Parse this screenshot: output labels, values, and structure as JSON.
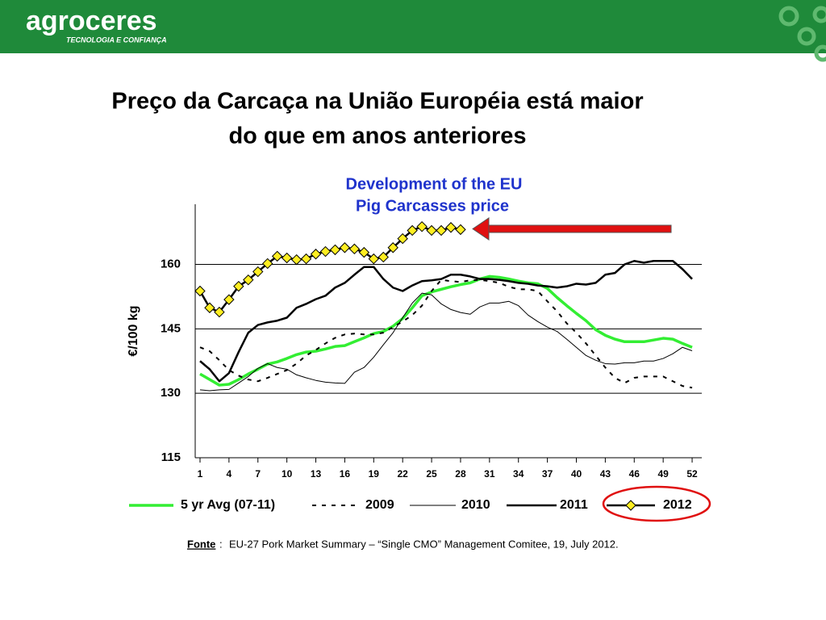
{
  "header": {
    "logo": "agroceres",
    "tagline": "TECNOLOGIA E CONFIANÇA"
  },
  "slide_title": [
    "Preço da Carcaça na União Européia está maior",
    "do que em anos anteriores"
  ],
  "chart_data": {
    "type": "line",
    "title": [
      "Development of the EU",
      "Pig Carcasses price"
    ],
    "y_label": "€/100 kg",
    "x": [
      1,
      2,
      3,
      4,
      5,
      6,
      7,
      8,
      9,
      10,
      11,
      12,
      13,
      14,
      15,
      16,
      17,
      18,
      19,
      20,
      21,
      22,
      23,
      24,
      25,
      26,
      27,
      28,
      29,
      30,
      31,
      32,
      33,
      34,
      35,
      36,
      37,
      38,
      39,
      40,
      41,
      42,
      43,
      44,
      45,
      46,
      47,
      48,
      49,
      50,
      51,
      52
    ],
    "xlim": [
      0.5,
      53
    ],
    "xticks": [
      1,
      4,
      7,
      10,
      13,
      16,
      19,
      22,
      25,
      28,
      31,
      34,
      37,
      40,
      43,
      46,
      49,
      52
    ],
    "ylim": [
      115,
      174
    ],
    "yticks": [
      115,
      130,
      145,
      160
    ],
    "grid": true,
    "series": [
      {
        "name": "5 yr Avg (07-11)",
        "color": "#33ee33",
        "width": 3.5,
        "dash": false,
        "values": [
          134.5,
          133.2,
          131.9,
          132.1,
          133.2,
          134.5,
          135.6,
          136.8,
          137.3,
          138.1,
          139.0,
          139.6,
          139.8,
          140.3,
          140.9,
          141.1,
          142.0,
          142.9,
          143.9,
          144.4,
          145.6,
          147.4,
          149.9,
          152.7,
          153.6,
          154.2,
          154.8,
          155.3,
          155.7,
          156.6,
          157.2,
          157.0,
          156.6,
          156.1,
          155.7,
          155.5,
          154.4,
          152.3,
          150.4,
          148.6,
          146.9,
          144.8,
          143.5,
          142.6,
          142.0,
          142.0,
          142.0,
          142.4,
          142.8,
          142.6,
          141.6,
          140.7
        ]
      },
      {
        "name": "2009",
        "color": "#000000",
        "width": 2,
        "dash": true,
        "values": [
          140.7,
          139.8,
          137.7,
          135.4,
          134.1,
          133.2,
          132.8,
          133.6,
          134.5,
          135.4,
          136.9,
          138.8,
          140.1,
          141.6,
          142.9,
          143.7,
          143.9,
          143.7,
          143.7,
          144.1,
          145.4,
          146.7,
          148.2,
          150.4,
          153.8,
          156.4,
          156.1,
          155.9,
          156.3,
          156.4,
          156.1,
          155.7,
          154.8,
          154.2,
          154.2,
          153.8,
          151.4,
          149.1,
          146.3,
          144.1,
          141.6,
          138.8,
          136.0,
          133.6,
          132.4,
          133.6,
          133.9,
          133.9,
          133.9,
          132.8,
          131.7,
          131.3
        ]
      },
      {
        "name": "2010",
        "color": "#000000",
        "width": 1,
        "dash": false,
        "values": [
          130.8,
          130.6,
          130.8,
          130.9,
          132.4,
          133.9,
          135.8,
          136.9,
          136.0,
          135.6,
          134.3,
          133.6,
          133.0,
          132.6,
          132.4,
          132.3,
          134.9,
          136.0,
          138.4,
          141.3,
          144.1,
          147.6,
          151.0,
          153.3,
          152.9,
          150.8,
          149.5,
          148.8,
          148.4,
          150.1,
          151.0,
          151.0,
          151.4,
          150.4,
          148.2,
          146.7,
          145.4,
          144.4,
          142.6,
          140.7,
          138.8,
          137.7,
          136.9,
          136.8,
          137.1,
          137.1,
          137.5,
          137.5,
          138.1,
          139.2,
          140.7,
          139.9
        ]
      },
      {
        "name": "2011",
        "color": "#000000",
        "width": 2.5,
        "dash": false,
        "values": [
          137.5,
          135.6,
          132.8,
          134.7,
          139.6,
          144.1,
          145.9,
          146.5,
          146.9,
          147.6,
          149.9,
          150.8,
          151.9,
          152.7,
          154.6,
          155.7,
          157.6,
          159.4,
          159.4,
          156.6,
          154.6,
          153.8,
          155.1,
          156.1,
          156.3,
          156.6,
          157.6,
          157.6,
          157.2,
          156.6,
          156.6,
          156.4,
          156.1,
          155.7,
          155.5,
          155.1,
          154.9,
          154.6,
          154.9,
          155.5,
          155.3,
          155.7,
          157.6,
          158.0,
          160.0,
          160.8,
          160.4,
          160.8,
          160.8,
          160.8,
          158.9,
          156.6
        ]
      },
      {
        "name": "2012",
        "color": "#000000",
        "marker_color": "#ffee22",
        "marker": "diamond",
        "width": 2.5,
        "dash": false,
        "values": [
          153.8,
          149.9,
          148.9,
          151.8,
          154.9,
          156.4,
          158.3,
          160.2,
          161.9,
          161.5,
          161.1,
          161.3,
          162.4,
          163.0,
          163.4,
          163.9,
          163.6,
          162.8,
          161.3,
          161.7,
          163.9,
          166.0,
          167.9,
          168.8,
          167.9,
          167.9,
          168.6,
          168.1,
          null,
          null,
          null,
          null,
          null,
          null,
          null,
          null,
          null,
          null,
          null,
          null,
          null,
          null,
          null,
          null,
          null,
          null,
          null,
          null,
          null,
          null,
          null,
          null
        ]
      }
    ]
  },
  "source": {
    "label": "Fonte",
    "text": "EU-27 Pork Market Summary – “Single CMO” Management Comitee, 19, July 2012."
  }
}
